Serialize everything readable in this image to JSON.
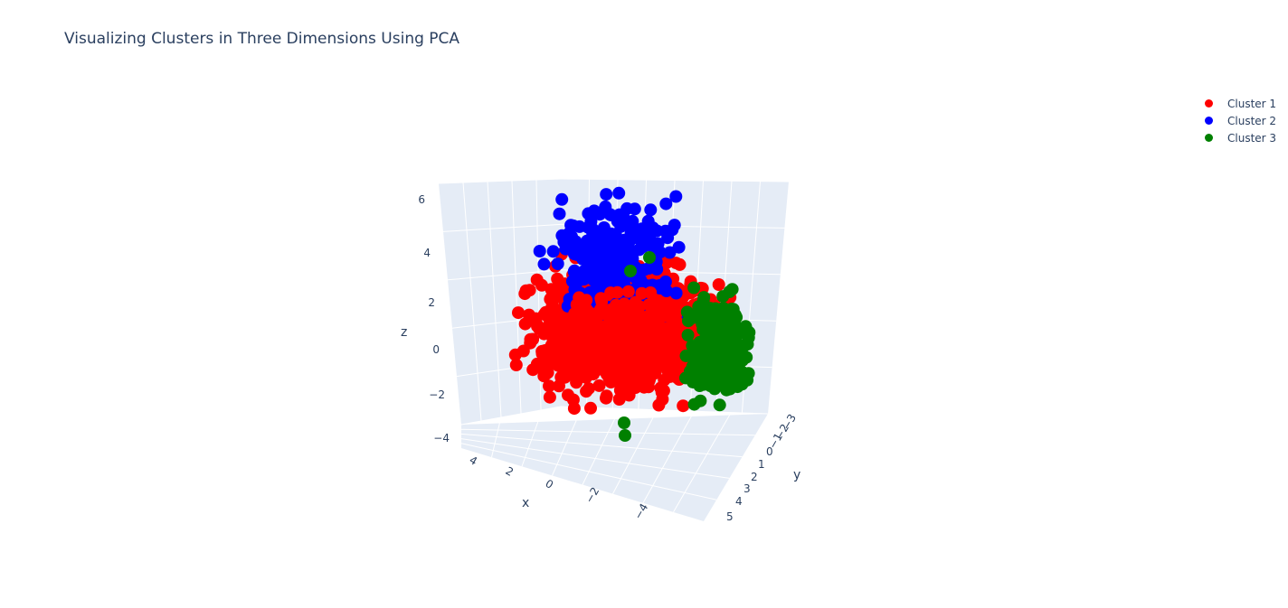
{
  "chart_data": {
    "type": "scatter",
    "title": "Visualizing Clusters in Three Dimensions Using PCA",
    "axes": {
      "x": {
        "label": "x",
        "ticks": [
          "4",
          "2",
          "0",
          "−2",
          "−4"
        ]
      },
      "y": {
        "label": "y",
        "ticks": [
          "−3",
          "−2",
          "−1",
          "0",
          "1",
          "2",
          "3",
          "4",
          "5"
        ]
      },
      "z": {
        "label": "z",
        "ticks": [
          "6",
          "4",
          "2",
          "0",
          "−2",
          "−4"
        ]
      }
    },
    "grid": true,
    "legend_position": "top-right",
    "series": [
      {
        "name": "Cluster 1",
        "color": "#ff0000",
        "x_range": [
          -4.5,
          4.5
        ],
        "y_range": [
          -2,
          5
        ],
        "z_range": [
          -3,
          5
        ]
      },
      {
        "name": "Cluster 2",
        "color": "#0000ff",
        "x_range": [
          -4,
          4
        ],
        "y_range": [
          -2,
          4
        ],
        "z_range": [
          -2,
          6
        ]
      },
      {
        "name": "Cluster 3",
        "color": "#008000",
        "x_range": [
          -5,
          3
        ],
        "y_range": [
          -3,
          2
        ],
        "z_range": [
          -3,
          3
        ]
      }
    ]
  }
}
